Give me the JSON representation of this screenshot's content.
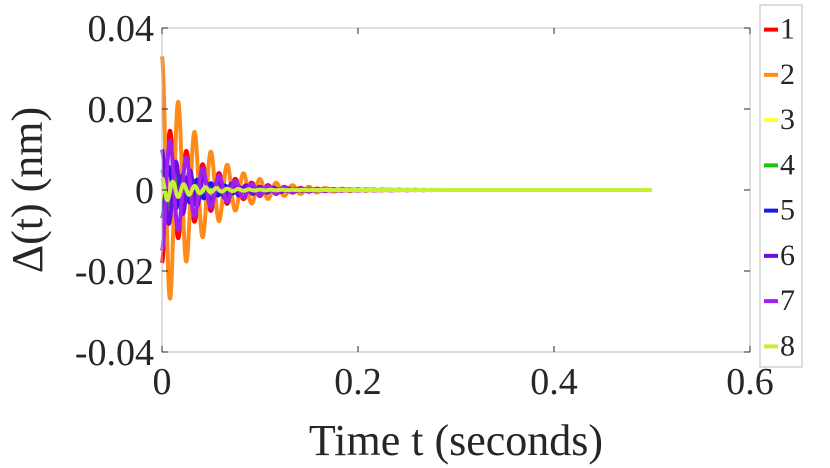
{
  "chart_data": {
    "type": "line",
    "xlabel": "Time t (seconds)",
    "ylabel": "Δ(t)  (nm)",
    "xlim": [
      0,
      0.6
    ],
    "ylim": [
      -0.04,
      0.04
    ],
    "x_ticks": [
      0,
      0.2,
      0.4,
      0.6
    ],
    "x_tick_labels": [
      "0",
      "0.2",
      "0.4",
      "0.6"
    ],
    "y_ticks": [
      -0.04,
      -0.02,
      0,
      0.02,
      0.04
    ],
    "y_tick_labels": [
      "-0.04",
      "-0.02",
      "0",
      "0.02",
      "0.04"
    ],
    "grid": false,
    "legend_position": "outside-right",
    "series": [
      {
        "name": "1",
        "color": "#ff0000",
        "x_start": 0,
        "x_end": 0.5,
        "initial_amplitude": 0.018,
        "oscillation_frequency_hz": 60,
        "decay_time_s": 0.04
      },
      {
        "name": "2",
        "color": "#ff8c1a",
        "x_start": 0,
        "x_end": 0.5,
        "initial_amplitude": 0.033,
        "oscillation_frequency_hz": 60,
        "decay_time_s": 0.04
      },
      {
        "name": "3",
        "color": "#ffff33",
        "x_start": 0,
        "x_end": 0.5,
        "initial_amplitude": 0.006,
        "oscillation_frequency_hz": 80,
        "decay_time_s": 0.035
      },
      {
        "name": "4",
        "color": "#19c419",
        "x_start": 0,
        "x_end": 0.5,
        "initial_amplitude": 0.005,
        "oscillation_frequency_hz": 80,
        "decay_time_s": 0.035
      },
      {
        "name": "5",
        "color": "#1a1ae6",
        "x_start": 0,
        "x_end": 0.5,
        "initial_amplitude": 0.007,
        "oscillation_frequency_hz": 70,
        "decay_time_s": 0.035
      },
      {
        "name": "6",
        "color": "#6a0fe0",
        "x_start": 0,
        "x_end": 0.5,
        "initial_amplitude": 0.01,
        "oscillation_frequency_hz": 70,
        "decay_time_s": 0.04
      },
      {
        "name": "7",
        "color": "#a020f0",
        "x_start": 0,
        "x_end": 0.5,
        "initial_amplitude": 0.015,
        "oscillation_frequency_hz": 60,
        "decay_time_s": 0.04
      },
      {
        "name": "8",
        "color": "#c8f032",
        "x_start": 0,
        "x_end": 0.5,
        "initial_amplitude": 0.003,
        "oscillation_frequency_hz": 90,
        "decay_time_s": 0.03
      }
    ]
  }
}
